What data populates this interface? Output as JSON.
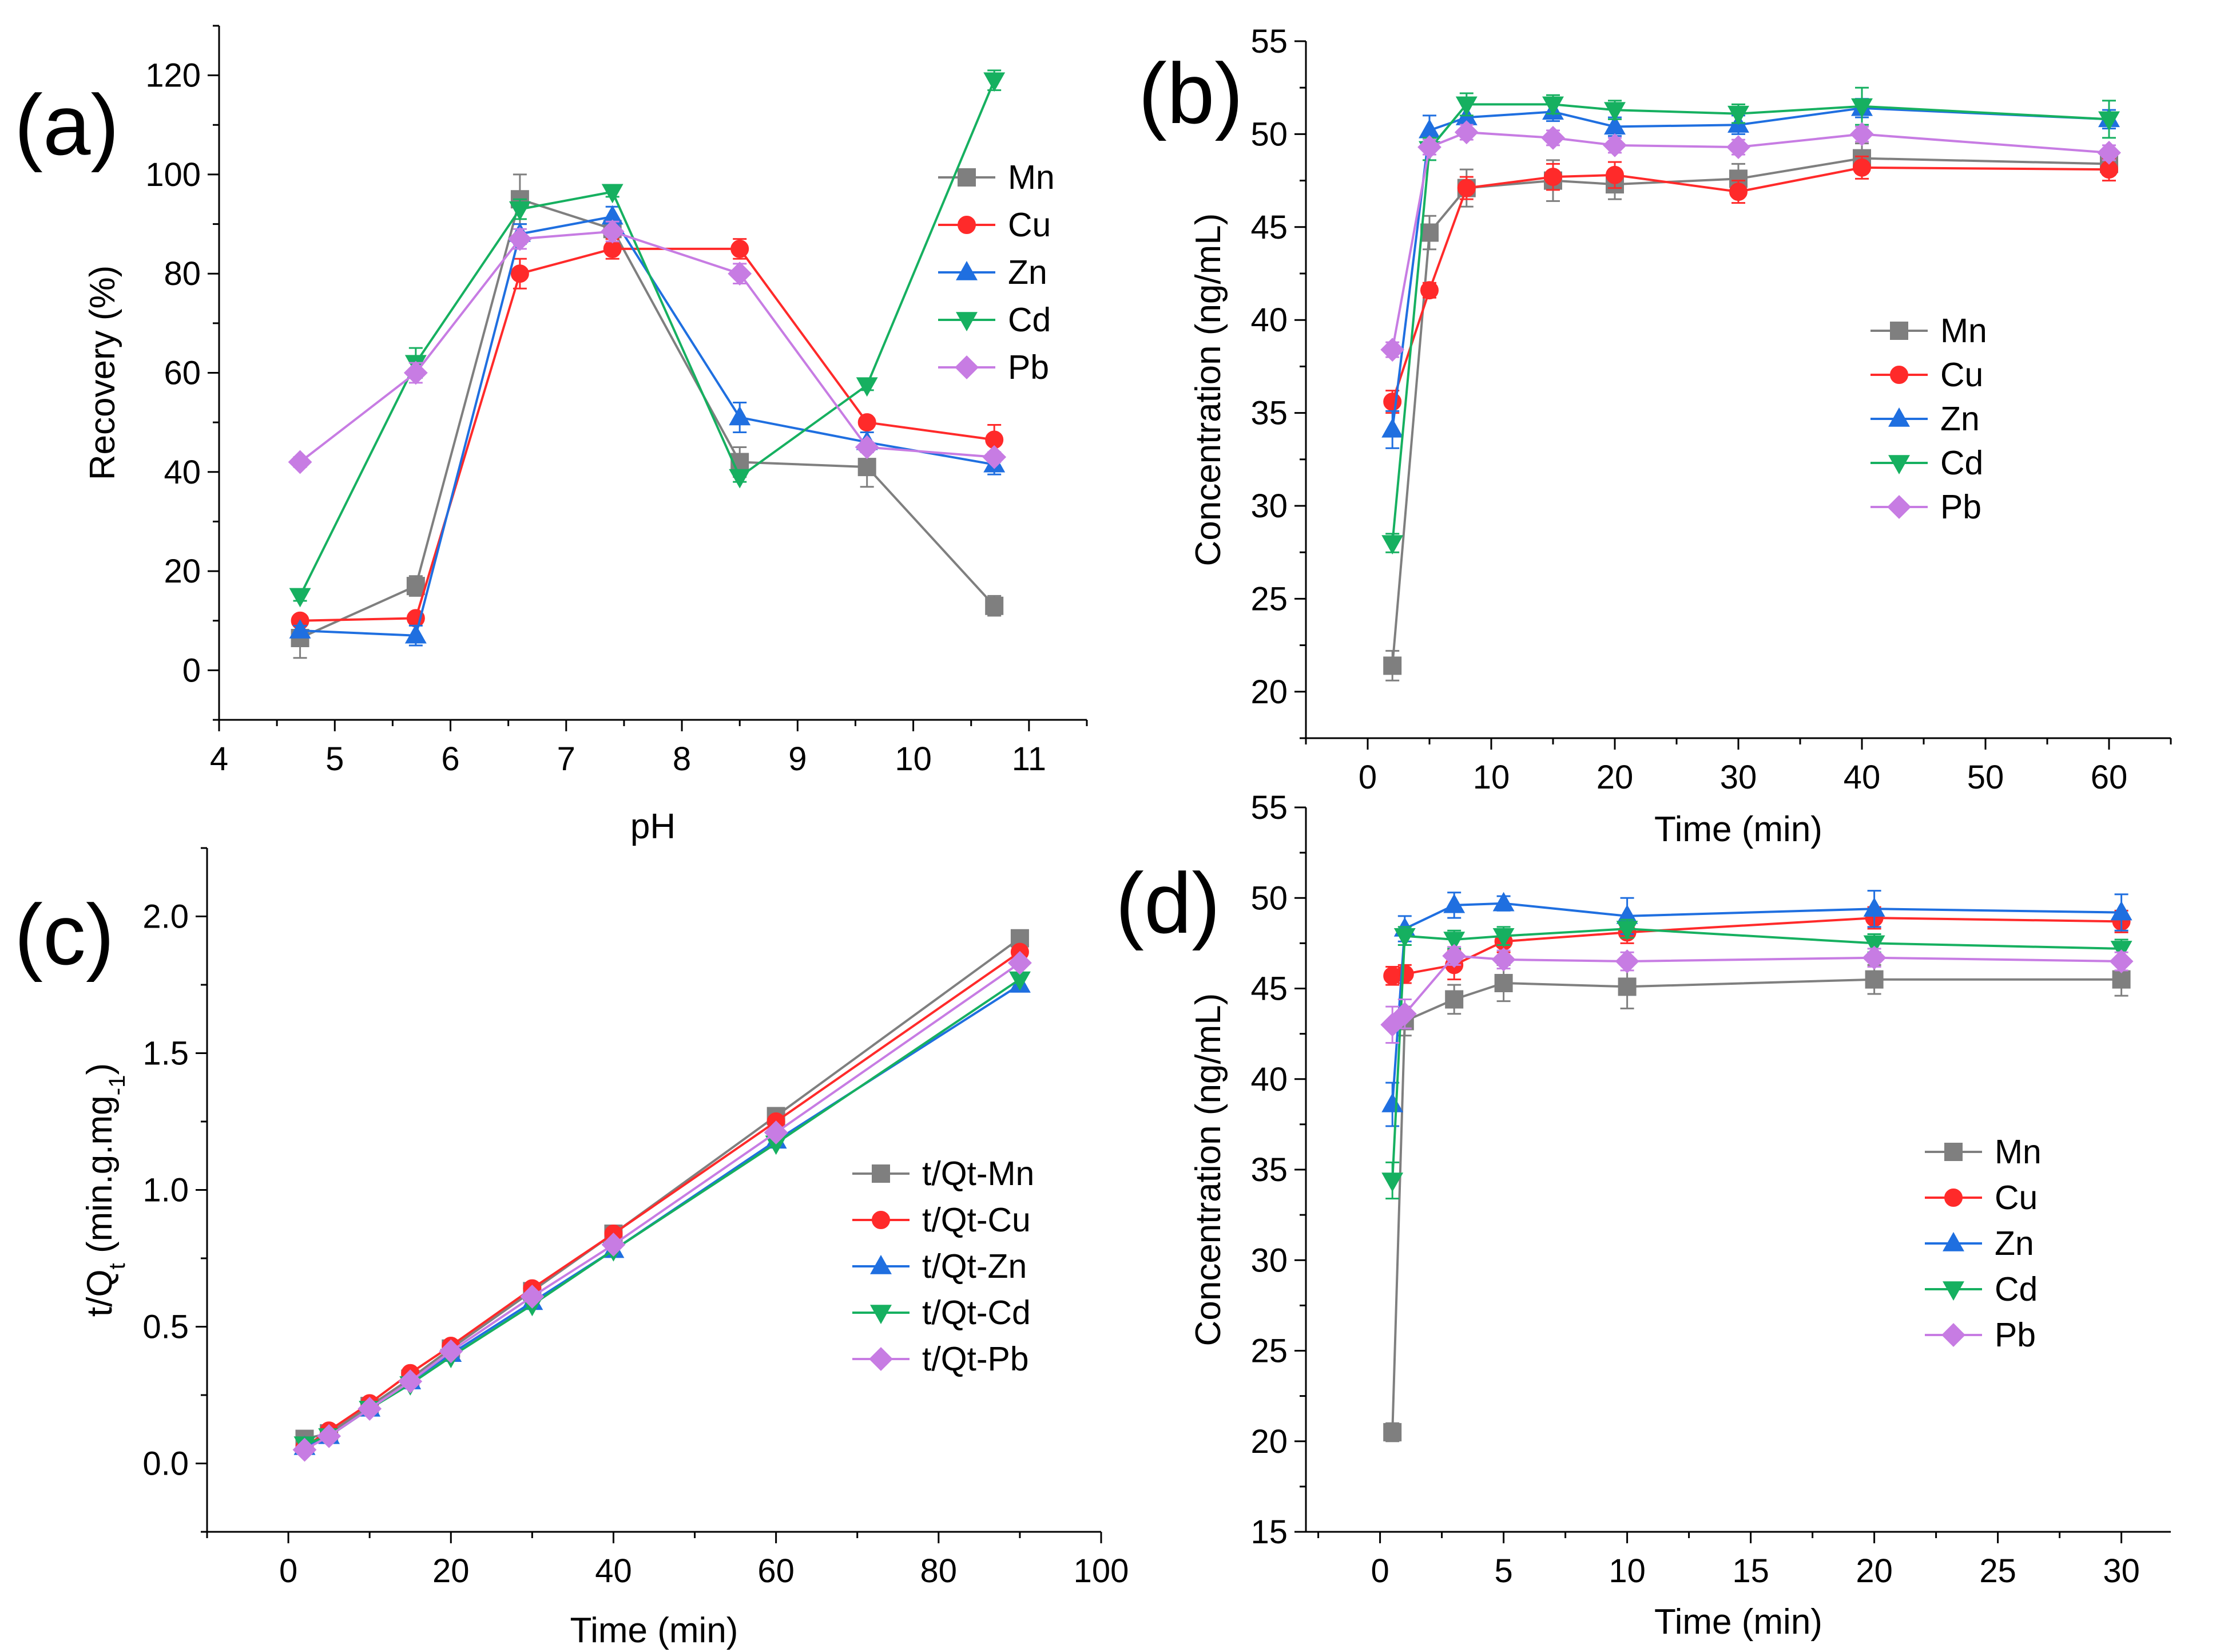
{
  "colors": {
    "Mn": "#7f7f7f",
    "Cu": "#ff2a2a",
    "Zn": "#1f6fe0",
    "Cd": "#16b060",
    "Pb": "#c77ce3"
  },
  "chart_data": [
    {
      "panel": "(a)",
      "type": "line",
      "xlabel": "pH",
      "ylabel": "Recovery (%)",
      "xlim": [
        4,
        11.5
      ],
      "ylim": [
        -10,
        130
      ],
      "xticks": [
        4,
        5,
        6,
        7,
        8,
        9,
        10,
        11
      ],
      "yticks": [
        0,
        20,
        40,
        60,
        80,
        100,
        120
      ],
      "x": [
        4.7,
        5.7,
        6.6,
        7.4,
        8.5,
        9.6,
        10.7
      ],
      "legend_position": "top-right",
      "series": [
        {
          "name": "Mn",
          "marker": "square",
          "values": [
            6.5,
            17,
            95,
            89,
            42,
            41,
            13
          ],
          "errors": [
            4,
            2,
            5,
            2,
            3,
            4,
            2
          ]
        },
        {
          "name": "Cu",
          "marker": "circle",
          "values": [
            10,
            10.5,
            80,
            85,
            85,
            50,
            46.5
          ],
          "errors": [
            1,
            1,
            3,
            2,
            2,
            1,
            3
          ]
        },
        {
          "name": "Zn",
          "marker": "triangle-up",
          "values": [
            8,
            7,
            88,
            91.5,
            51,
            46,
            41.5
          ],
          "errors": [
            1,
            2,
            2,
            2,
            3,
            2,
            2
          ]
        },
        {
          "name": "Cd",
          "marker": "triangle-down",
          "values": [
            15,
            62,
            93,
            96.5,
            39,
            57.5,
            119
          ],
          "errors": [
            1,
            3,
            2,
            1,
            1,
            1,
            2
          ]
        },
        {
          "name": "Pb",
          "marker": "diamond",
          "values": [
            42,
            60,
            87,
            88.5,
            80,
            45,
            43
          ],
          "errors": [
            1,
            2,
            2,
            2,
            2,
            1,
            1
          ]
        }
      ]
    },
    {
      "panel": "(b)",
      "type": "line",
      "xlabel": "Time (min)",
      "ylabel": "Concentration (ng/mL)",
      "xlim": [
        -5,
        65
      ],
      "ylim": [
        17.5,
        55
      ],
      "xticks": [
        0,
        10,
        20,
        30,
        40,
        50,
        60
      ],
      "yticks": [
        20,
        25,
        30,
        35,
        40,
        45,
        50,
        55
      ],
      "x": [
        2,
        5,
        8,
        15,
        20,
        30,
        40,
        60
      ],
      "legend_position": "center-right",
      "series": [
        {
          "name": "Mn",
          "marker": "square",
          "values": [
            21.4,
            44.7,
            47.1,
            47.5,
            47.3,
            47.6,
            48.7,
            48.4
          ],
          "errors": [
            0.8,
            0.9,
            1.0,
            1.1,
            0.8,
            0.8,
            0.8,
            0.6
          ]
        },
        {
          "name": "Cu",
          "marker": "circle",
          "values": [
            35.6,
            41.6,
            47.1,
            47.7,
            47.8,
            46.9,
            48.2,
            48.1
          ],
          "errors": [
            0.6,
            0.4,
            0.6,
            0.7,
            0.7,
            0.6,
            0.6,
            0.6
          ]
        },
        {
          "name": "Zn",
          "marker": "triangle-up",
          "values": [
            34.1,
            50.2,
            50.9,
            51.2,
            50.4,
            50.5,
            51.4,
            50.8
          ],
          "errors": [
            1.0,
            0.8,
            0.8,
            0.5,
            0.5,
            0.5,
            0.5,
            0.5
          ]
        },
        {
          "name": "Cd",
          "marker": "triangle-down",
          "values": [
            28.0,
            49.2,
            51.6,
            51.6,
            51.3,
            51.1,
            51.5,
            50.8
          ],
          "errors": [
            0.5,
            0.6,
            0.6,
            0.5,
            0.5,
            0.5,
            1.0,
            1.0
          ]
        },
        {
          "name": "Pb",
          "marker": "diamond",
          "values": [
            38.4,
            49.3,
            50.1,
            49.8,
            49.4,
            49.3,
            50.0,
            49.0
          ],
          "errors": [
            0.4,
            0.4,
            0.4,
            0.4,
            0.4,
            0.4,
            0.4,
            0.4
          ]
        }
      ]
    },
    {
      "panel": "(c)",
      "type": "line",
      "xlabel": "Time (min)",
      "ylabel_main": "t/Q",
      "ylabel_sub": "t",
      "ylabel_rest": " (min.g.mg",
      "ylabel_sub2": "-1",
      "ylabel_end": ")",
      "xlim": [
        -10,
        100
      ],
      "ylim": [
        -0.25,
        2.25
      ],
      "xticks": [
        0,
        20,
        40,
        60,
        80,
        100
      ],
      "yticks": [
        0.0,
        0.5,
        1.0,
        1.5,
        2.0
      ],
      "x": [
        2,
        5,
        10,
        15,
        20,
        30,
        40,
        60,
        90
      ],
      "legend_position": "center-right",
      "series": [
        {
          "name": "t/Qt-Mn",
          "color_key": "Mn",
          "marker": "square",
          "values": [
            0.09,
            0.11,
            0.21,
            0.31,
            0.42,
            0.63,
            0.84,
            1.27,
            1.92
          ]
        },
        {
          "name": "t/Qt-Cu",
          "color_key": "Cu",
          "marker": "circle",
          "values": [
            0.06,
            0.12,
            0.22,
            0.33,
            0.43,
            0.64,
            0.84,
            1.25,
            1.87
          ]
        },
        {
          "name": "t/Qt-Zn",
          "color_key": "Zn",
          "marker": "triangle-up",
          "values": [
            0.06,
            0.1,
            0.2,
            0.3,
            0.4,
            0.59,
            0.78,
            1.18,
            1.75
          ]
        },
        {
          "name": "t/Qt-Cd",
          "color_key": "Cd",
          "marker": "triangle-down",
          "values": [
            0.07,
            0.1,
            0.2,
            0.29,
            0.39,
            0.58,
            0.78,
            1.17,
            1.77
          ]
        },
        {
          "name": "t/Qt-Pb",
          "color_key": "Pb",
          "marker": "diamond",
          "values": [
            0.05,
            0.1,
            0.2,
            0.3,
            0.41,
            0.61,
            0.8,
            1.21,
            1.83
          ]
        }
      ]
    },
    {
      "panel": "(d)",
      "type": "line",
      "xlabel": "Time (min)",
      "ylabel": "Concentration (ng/mL)",
      "xlim": [
        -3,
        32
      ],
      "ylim": [
        15,
        55
      ],
      "xticks": [
        0,
        5,
        10,
        15,
        20,
        25,
        30
      ],
      "yticks": [
        15,
        20,
        25,
        30,
        35,
        40,
        45,
        50,
        55
      ],
      "x": [
        0.5,
        1,
        3,
        5,
        10,
        20,
        30
      ],
      "legend_position": "center-right",
      "series": [
        {
          "name": "Mn",
          "marker": "square",
          "values": [
            20.5,
            43.2,
            44.4,
            45.3,
            45.1,
            45.5,
            45.5
          ],
          "errors": [
            0.5,
            0.8,
            0.8,
            1.0,
            1.2,
            0.8,
            0.9
          ]
        },
        {
          "name": "Cu",
          "marker": "circle",
          "values": [
            45.7,
            45.8,
            46.3,
            47.6,
            48.1,
            48.9,
            48.7
          ],
          "errors": [
            0.5,
            0.5,
            0.8,
            0.6,
            0.6,
            0.6,
            0.6
          ]
        },
        {
          "name": "Zn",
          "marker": "triangle-up",
          "values": [
            38.6,
            48.3,
            49.6,
            49.7,
            49.0,
            49.4,
            49.2
          ],
          "errors": [
            1.2,
            0.7,
            0.7,
            0.4,
            1.0,
            1.0,
            1.0
          ]
        },
        {
          "name": "Cd",
          "marker": "triangle-down",
          "values": [
            34.4,
            47.9,
            47.7,
            47.9,
            48.3,
            47.5,
            47.2
          ],
          "errors": [
            1.0,
            0.5,
            0.5,
            0.5,
            0.5,
            0.5,
            0.5
          ]
        },
        {
          "name": "Pb",
          "marker": "diamond",
          "values": [
            43.0,
            43.6,
            46.8,
            46.6,
            46.5,
            46.7,
            46.5
          ],
          "errors": [
            1.0,
            0.8,
            0.5,
            0.5,
            0.5,
            0.5,
            0.5
          ]
        }
      ]
    }
  ]
}
